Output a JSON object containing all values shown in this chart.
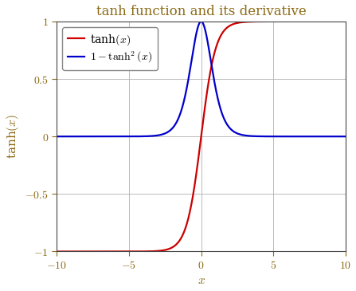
{
  "title": "tanh function and its derivative",
  "xlabel": "$x$",
  "ylabel": "tanh$(x)$",
  "xlim": [
    -10,
    10
  ],
  "ylim": [
    -1,
    1
  ],
  "xticks": [
    -10,
    -5,
    0,
    5,
    10
  ],
  "yticks": [
    -1,
    -0.5,
    0,
    0.5,
    1
  ],
  "ytick_labels": [
    "$-1$",
    "$-0.5$",
    "$0$",
    "$0.5$",
    "$1$"
  ],
  "xtick_labels": [
    "$-10$",
    "$-5$",
    "$0$",
    "$5$",
    "$10$"
  ],
  "tanh_color": "#cc0000",
  "deriv_color": "#0000cc",
  "tanh_label": "tanh$(x)$",
  "deriv_label": "$1 - \\tanh^2(x)$",
  "line_width": 1.6,
  "title_fontsize": 12,
  "label_fontsize": 11,
  "tick_fontsize": 10,
  "legend_fontsize": 10,
  "background_color": "#ffffff",
  "grid_color": "#b0b0b0",
  "title_color": "#8B6914",
  "tick_color": "#8B6914",
  "spine_color": "#444444"
}
